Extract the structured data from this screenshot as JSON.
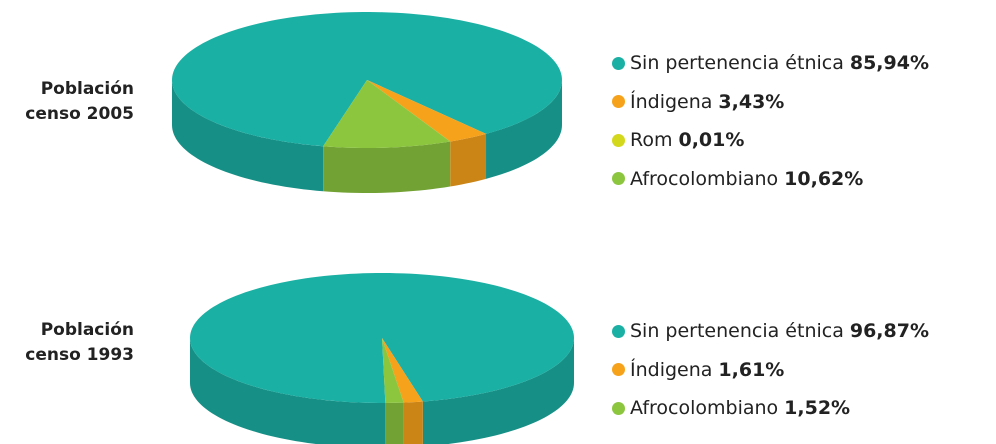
{
  "chart_data": [
    {
      "type": "pie",
      "title": "Población censo 2005",
      "categories": [
        "Sin pertenencia étnica",
        "Índigena",
        "Rom",
        "Afrocolombiano"
      ],
      "values": [
        85.94,
        3.43,
        0.01,
        10.62
      ],
      "value_labels": [
        "85,94%",
        "3,43%",
        "0,01%",
        "10,62%"
      ],
      "colors": [
        "#1bb0a4",
        "#f7a21b",
        "#d4d81c",
        "#8cc63f"
      ]
    },
    {
      "type": "pie",
      "title": "Población censo 1993",
      "categories": [
        "Sin pertenencia étnica",
        "Índigena",
        "Afrocolombiano"
      ],
      "values": [
        96.87,
        1.61,
        1.52
      ],
      "value_labels": [
        "96,87%",
        "1,61%",
        "1,52%"
      ],
      "colors": [
        "#1bb0a4",
        "#f7a21b",
        "#8cc63f"
      ]
    }
  ]
}
